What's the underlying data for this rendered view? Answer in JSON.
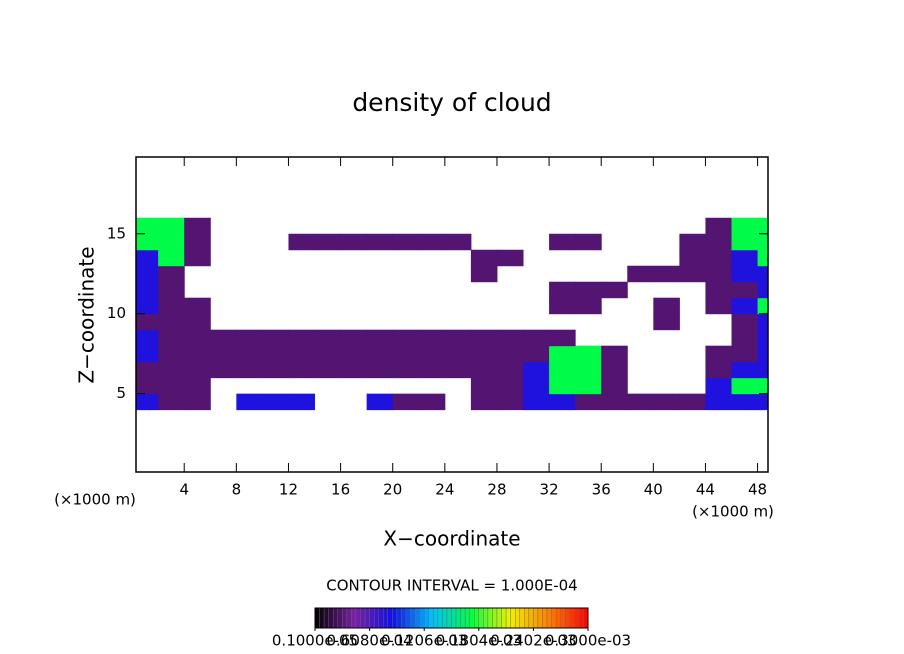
{
  "chart_data": {
    "type": "contour",
    "title": "density of cloud",
    "x_label": "X−coordinate",
    "y_label": "Z−coordinate",
    "x_unit": "(×1000 m)",
    "y_unit": "(×1000 m)",
    "note": "CONTOUR INTERVAL = 1.000E-04",
    "xlim": [
      0.3,
      48.8
    ],
    "ylim": [
      0.1,
      19.8
    ],
    "xticks": [
      4,
      8,
      12,
      16,
      20,
      24,
      28,
      32,
      36,
      40,
      44,
      48
    ],
    "yticks": [
      5,
      10,
      15
    ],
    "x": [
      1,
      3,
      5,
      7,
      9,
      11,
      13,
      15,
      17,
      19,
      21,
      23,
      25,
      27,
      29,
      31,
      33,
      35,
      37,
      39,
      41,
      43,
      45,
      47,
      49
    ],
    "y": [
      4.5,
      5.5,
      6.5,
      7.5,
      8.5,
      9.5,
      10.5,
      11.5,
      12.5,
      13.5,
      14.5,
      15.5
    ],
    "z": [
      [
        8e-05,
        3e-05,
        3e-05,
        0,
        8e-05,
        8e-05,
        8e-05,
        0,
        0,
        8e-05,
        3e-05,
        3e-05,
        0,
        3e-05,
        3e-05,
        8e-05,
        8e-05,
        3e-05,
        3e-05,
        3e-05,
        3e-05,
        3e-05,
        8e-05,
        8e-05,
        8e-05
      ],
      [
        3e-05,
        3e-05,
        3e-05,
        0,
        0,
        0,
        0,
        0,
        0,
        0,
        0,
        0,
        0,
        3e-05,
        3e-05,
        8e-05,
        0.00017,
        0.00017,
        3e-05,
        0,
        0,
        0,
        8e-05,
        0.00017,
        0.00017
      ],
      [
        3e-05,
        3e-05,
        3e-05,
        3e-05,
        3e-05,
        3e-05,
        3e-05,
        3e-05,
        3e-05,
        3e-05,
        3e-05,
        3e-05,
        3e-05,
        3e-05,
        3e-05,
        8e-05,
        0.00017,
        0.00017,
        3e-05,
        0,
        0,
        0,
        3e-05,
        8e-05,
        8e-05
      ],
      [
        8e-05,
        3e-05,
        3e-05,
        3e-05,
        3e-05,
        3e-05,
        3e-05,
        3e-05,
        3e-05,
        3e-05,
        3e-05,
        3e-05,
        3e-05,
        3e-05,
        3e-05,
        3e-05,
        0.00017,
        0.00017,
        3e-05,
        0,
        0,
        0,
        3e-05,
        3e-05,
        8e-05
      ],
      [
        8e-05,
        3e-05,
        3e-05,
        3e-05,
        3e-05,
        3e-05,
        3e-05,
        3e-05,
        3e-05,
        3e-05,
        3e-05,
        3e-05,
        3e-05,
        3e-05,
        3e-05,
        3e-05,
        3e-05,
        0,
        0,
        0,
        0,
        0,
        0,
        3e-05,
        8e-05
      ],
      [
        3e-05,
        3e-05,
        3e-05,
        0,
        0,
        0,
        0,
        0,
        0,
        0,
        0,
        0,
        0,
        0,
        0,
        0,
        0,
        0,
        0,
        0,
        3e-05,
        0,
        0,
        3e-05,
        8e-05
      ],
      [
        8e-05,
        3e-05,
        3e-05,
        0,
        0,
        0,
        0,
        0,
        0,
        0,
        0,
        0,
        0,
        0,
        0,
        0,
        3e-05,
        3e-05,
        0,
        0,
        3e-05,
        0,
        3e-05,
        8e-05,
        0.00017
      ],
      [
        8e-05,
        3e-05,
        0,
        0,
        0,
        0,
        0,
        0,
        0,
        0,
        0,
        0,
        0,
        0,
        0,
        0,
        3e-05,
        3e-05,
        3e-05,
        0,
        0,
        0,
        3e-05,
        3e-05,
        8e-05
      ],
      [
        8e-05,
        3e-05,
        0,
        0,
        0,
        0,
        0,
        0,
        0,
        0,
        0,
        0,
        0,
        3e-05,
        0,
        0,
        0,
        0,
        0,
        3e-05,
        3e-05,
        3e-05,
        3e-05,
        8e-05,
        8e-05
      ],
      [
        8e-05,
        0.00017,
        3e-05,
        0,
        0,
        0,
        0,
        0,
        0,
        0,
        0,
        0,
        0,
        3e-05,
        3e-05,
        0,
        0,
        0,
        0,
        0,
        0,
        3e-05,
        3e-05,
        8e-05,
        0.00017
      ],
      [
        0.00017,
        0.00017,
        3e-05,
        0,
        0,
        0,
        3e-05,
        3e-05,
        3e-05,
        3e-05,
        3e-05,
        3e-05,
        3e-05,
        0,
        0,
        0,
        3e-05,
        3e-05,
        0,
        0,
        0,
        3e-05,
        3e-05,
        0.00017,
        0.00017
      ],
      [
        0.00017,
        0.00017,
        3e-05,
        0,
        0,
        0,
        0,
        0,
        0,
        0,
        0,
        0,
        0,
        0,
        0,
        0,
        0,
        0,
        0,
        0,
        0,
        0,
        3e-05,
        0.00017,
        0.00017
      ]
    ],
    "colormap": [
      "#000000",
      "#7a1fa6",
      "#1010e8",
      "#00c0ff",
      "#00ff40",
      "#f0f000",
      "#ff8000",
      "#ff0000"
    ],
    "colorbar": {
      "lim": [
        1e-06,
        0.0003
      ],
      "ticks": [
        {
          "value": 1e-06,
          "label": "0.1000e-05"
        },
        {
          "value": 6.08e-05,
          "label": "0.6080e-04"
        },
        {
          "value": 0.0001206,
          "label": "0.1206e-03"
        },
        {
          "value": 0.0001804,
          "label": "0.1804e-03"
        },
        {
          "value": 0.0002402,
          "label": "0.2402e-03"
        },
        {
          "value": 0.0003,
          "label": "0.3000e-03"
        }
      ]
    }
  }
}
